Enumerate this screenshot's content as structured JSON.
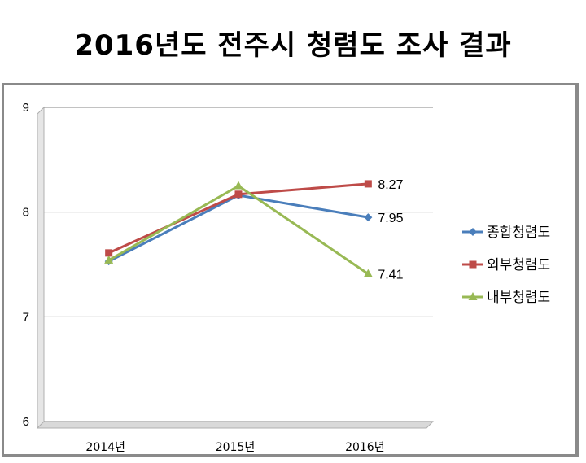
{
  "title": "2016년도 전주시 청렴도 조사 결과",
  "chart_data": {
    "type": "line",
    "categories": [
      "2014년",
      "2015년",
      "2016년"
    ],
    "ylim": [
      6,
      9
    ],
    "yticks": [
      6,
      7,
      8,
      9
    ],
    "grid": true,
    "legend_position": "right",
    "series": [
      {
        "name": "종합청렴도",
        "values": [
          7.53,
          8.16,
          7.95
        ],
        "color": "#4a7ebb",
        "marker": "diamond"
      },
      {
        "name": "외부청렴도",
        "values": [
          7.61,
          8.17,
          8.27
        ],
        "color": "#be4b48",
        "marker": "square"
      },
      {
        "name": "내부청렴도",
        "values": [
          7.54,
          8.25,
          7.41
        ],
        "color": "#98b954",
        "marker": "triangle"
      }
    ],
    "data_labels": [
      {
        "series": 0,
        "index": 2,
        "text": "7.95"
      },
      {
        "series": 1,
        "index": 2,
        "text": "8.27"
      },
      {
        "series": 2,
        "index": 2,
        "text": "7.41"
      }
    ]
  }
}
